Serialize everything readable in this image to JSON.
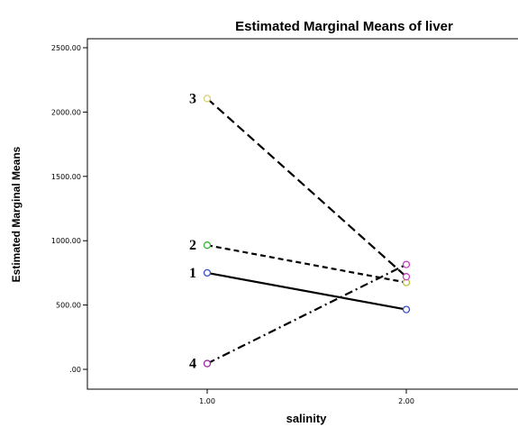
{
  "chart_data": {
    "type": "line",
    "title": "Estimated Marginal Means of liver",
    "xlabel": "salinity",
    "ylabel": "Estimated Marginal Means",
    "x": [
      1.0,
      2.0
    ],
    "x_tick_labels": [
      "1.00",
      "2.00"
    ],
    "y_ticks": [
      0,
      500,
      1000,
      1500,
      2000,
      2500
    ],
    "y_tick_labels": [
      ".00",
      "500.00",
      "1000.00",
      "1500.00",
      "2000.00",
      "2500.00"
    ],
    "ylim": [
      0,
      2500
    ],
    "grid": false,
    "series": [
      {
        "name": "1",
        "values": [
          750,
          465
        ],
        "color": "#000000",
        "dash": "solid",
        "marker_colors": [
          "#3a4fc8",
          "#3a4fc8"
        ]
      },
      {
        "name": "2",
        "values": [
          965,
          675
        ],
        "color": "#000000",
        "dash": "short-dash",
        "marker_colors": [
          "#33b633",
          "#b8c03a"
        ]
      },
      {
        "name": "3",
        "values": [
          2105,
          720
        ],
        "color": "#000000",
        "dash": "long-dash",
        "marker_colors": [
          "#d8d07a",
          "#c040c0"
        ]
      },
      {
        "name": "4",
        "values": [
          45,
          815
        ],
        "color": "#000000",
        "dash": "dash-dot",
        "marker_colors": [
          "#9a2aa6",
          "#c040c0"
        ]
      }
    ]
  }
}
